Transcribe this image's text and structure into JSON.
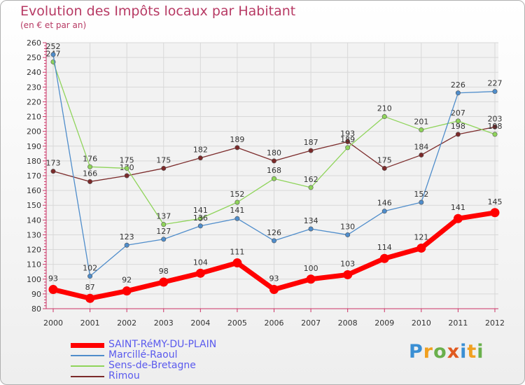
{
  "title": "Evolution des Impôts locaux par Habitant",
  "subtitle": "(en € et par an)",
  "brand": {
    "letters": [
      "P",
      "r",
      "o",
      "x",
      "i",
      "t",
      "i"
    ],
    "colors": [
      "#3a8fd4",
      "#f0a020",
      "#6ab04c",
      "#e05a20",
      "#3a8fd4",
      "#f0a020",
      "#6ab04c"
    ]
  },
  "chart_data": {
    "type": "line",
    "x": [
      "2000",
      "2001",
      "2002",
      "2003",
      "2004",
      "2005",
      "2006",
      "2007",
      "2008",
      "2009",
      "2010",
      "2011",
      "2012"
    ],
    "ylim": [
      80,
      260
    ],
    "yticks": [
      "80",
      "90",
      "100",
      "110",
      "120",
      "130",
      "140",
      "150",
      "160",
      "170",
      "180",
      "190",
      "200",
      "210",
      "220",
      "230",
      "240",
      "250",
      "260"
    ],
    "grid": true,
    "series": [
      {
        "name": "SAINT-RéMY-DU-PLAIN",
        "color": "#ff0000",
        "values": [
          93,
          87,
          92,
          98,
          104,
          111,
          93,
          100,
          103,
          114,
          121,
          141,
          145
        ],
        "labels": [
          "93",
          "87",
          "92",
          "98",
          "104",
          "111",
          "93",
          "100",
          "103",
          "114",
          "121",
          "141",
          "145"
        ]
      },
      {
        "name": "Marcillé-Raoul",
        "color": "#4f8dcb",
        "values": [
          252,
          102,
          123,
          127,
          136,
          141,
          126,
          134,
          130,
          146,
          152,
          226,
          227
        ],
        "labels": [
          "252",
          "102",
          "123",
          "127",
          "136",
          "141",
          "126",
          "134",
          "130",
          "146",
          "152",
          "226",
          "227"
        ]
      },
      {
        "name": "Sens-de-Bretagne",
        "color": "#8fd45a",
        "values": [
          247,
          176,
          175,
          137,
          141,
          152,
          168,
          162,
          189,
          210,
          201,
          207,
          198
        ],
        "labels": [
          "247",
          "176",
          "175",
          "137",
          "141",
          "152",
          "168",
          "162",
          "189",
          "210",
          "201",
          "207",
          "198"
        ]
      },
      {
        "name": "Rimou",
        "color": "#7b2a2a",
        "values": [
          173,
          166,
          170,
          175,
          182,
          189,
          180,
          187,
          193,
          175,
          184,
          198,
          203
        ],
        "labels": [
          "173",
          "166",
          "170",
          "175",
          "182",
          "189",
          "180",
          "187",
          "193",
          "175",
          "184",
          "198",
          "203"
        ]
      }
    ]
  }
}
